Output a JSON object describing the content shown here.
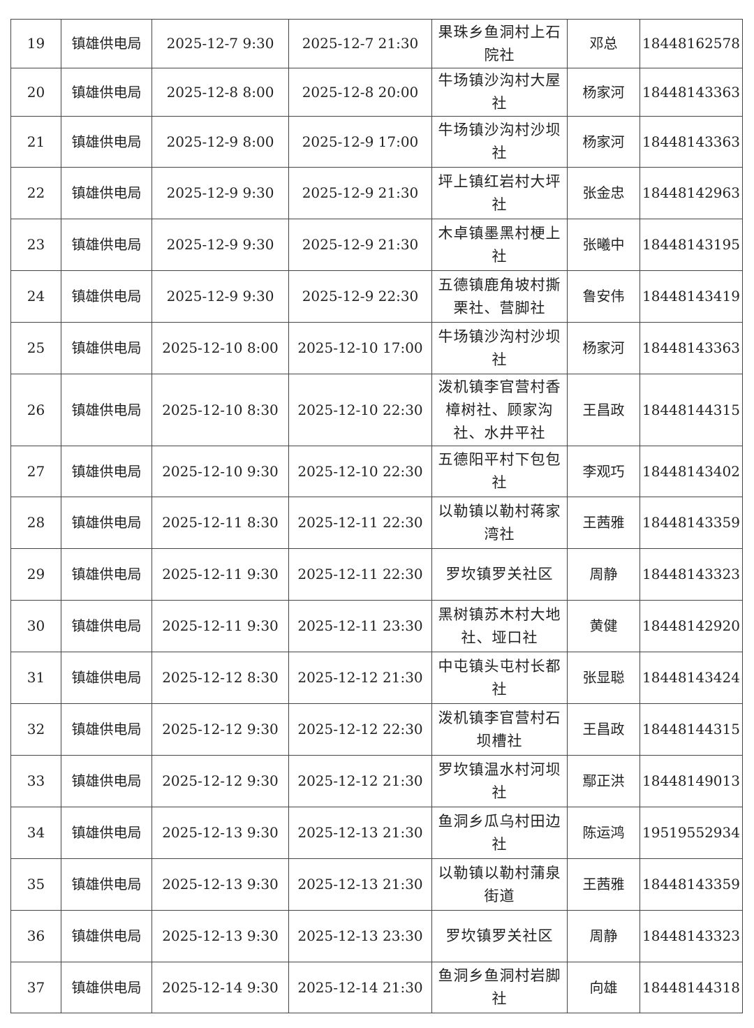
{
  "rows": [
    {
      "no": "19",
      "unit": "镇雄供电局",
      "start": "2025-12-7  9:30",
      "end": "2025-12-7  21:30",
      "location": "果珠乡鱼洞村上石院社",
      "contact": "邓总",
      "phone": "18448162578"
    },
    {
      "no": "20",
      "unit": "镇雄供电局",
      "start": "2025-12-8  8:00",
      "end": "2025-12-8  20:00",
      "location": "牛场镇沙沟村大屋社",
      "contact": "杨家河",
      "phone": "18448143363"
    },
    {
      "no": "21",
      "unit": "镇雄供电局",
      "start": "2025-12-9  8:00",
      "end": "2025-12-9  17:00",
      "location": "牛场镇沙沟村沙坝社",
      "contact": "杨家河",
      "phone": "18448143363"
    },
    {
      "no": "22",
      "unit": "镇雄供电局",
      "start": "2025-12-9  9:30",
      "end": "2025-12-9  21:30",
      "location": "坪上镇红岩村大坪社",
      "contact": "张金忠",
      "phone": "18448142963"
    },
    {
      "no": "23",
      "unit": "镇雄供电局",
      "start": "2025-12-9  9:30",
      "end": "2025-12-9  21:30",
      "location": "木卓镇墨黑村梗上社",
      "contact": "张曦中",
      "phone": "18448143195"
    },
    {
      "no": "24",
      "unit": "镇雄供电局",
      "start": "2025-12-9  9:30",
      "end": "2025-12-9  22:30",
      "location": "五德镇鹿角坡村撕栗社、营脚社",
      "contact": "鲁安伟",
      "phone": "18448143419"
    },
    {
      "no": "25",
      "unit": "镇雄供电局",
      "start": "2025-12-10  8:00",
      "end": "2025-12-10  17:00",
      "location": "牛场镇沙沟村沙坝社",
      "contact": "杨家河",
      "phone": "18448143363"
    },
    {
      "no": "26",
      "unit": "镇雄供电局",
      "start": "2025-12-10  8:30",
      "end": "2025-12-10  22:30",
      "location": "泼机镇李官营村香樟树社、顾家沟社、水井平社",
      "contact": "王昌政",
      "phone": "18448144315"
    },
    {
      "no": "27",
      "unit": "镇雄供电局",
      "start": "2025-12-10  9:30",
      "end": "2025-12-10  22:30",
      "location": "五德阳平村下包包社",
      "contact": "李观巧",
      "phone": "18448143402"
    },
    {
      "no": "28",
      "unit": "镇雄供电局",
      "start": "2025-12-11  8:30",
      "end": "2025-12-11  22:30",
      "location": "以勒镇以勒村蒋家湾社",
      "contact": "王茜雅",
      "phone": "18448143359"
    },
    {
      "no": "29",
      "unit": "镇雄供电局",
      "start": "2025-12-11  9:30",
      "end": "2025-12-11  22:30",
      "location": "罗坎镇罗关社区",
      "contact": "周静",
      "phone": "18448143323"
    },
    {
      "no": "30",
      "unit": "镇雄供电局",
      "start": "2025-12-11  9:30",
      "end": "2025-12-11  23:30",
      "location": "黑树镇苏木村大地社、垭口社",
      "contact": "黄健",
      "phone": "18448142920"
    },
    {
      "no": "31",
      "unit": "镇雄供电局",
      "start": "2025-12-12  8:30",
      "end": "2025-12-12  21:30",
      "location": "中屯镇头屯村长都社",
      "contact": "张显聪",
      "phone": "18448143424"
    },
    {
      "no": "32",
      "unit": "镇雄供电局",
      "start": "2025-12-12  9:30",
      "end": "2025-12-12  22:30",
      "location": "泼机镇李官营村石坝槽社",
      "contact": "王昌政",
      "phone": "18448144315"
    },
    {
      "no": "33",
      "unit": "镇雄供电局",
      "start": "2025-12-12  9:30",
      "end": "2025-12-12  21:30",
      "location": "罗坎镇温水村河坝社",
      "contact": "鄢正洪",
      "phone": "18448149013"
    },
    {
      "no": "34",
      "unit": "镇雄供电局",
      "start": "2025-12-13  9:30",
      "end": "2025-12-13  21:30",
      "location": "鱼洞乡瓜乌村田边社",
      "contact": "陈运鸿",
      "phone": "19519552934"
    },
    {
      "no": "35",
      "unit": "镇雄供电局",
      "start": "2025-12-13  9:30",
      "end": "2025-12-13  21:30",
      "location": "以勒镇以勒村蒲泉街道",
      "contact": "王茜雅",
      "phone": "18448143359"
    },
    {
      "no": "36",
      "unit": "镇雄供电局",
      "start": "2025-12-13  9:30",
      "end": "2025-12-13  23:30",
      "location": "罗坎镇罗关社区",
      "contact": "周静",
      "phone": "18448143323"
    },
    {
      "no": "37",
      "unit": "镇雄供电局",
      "start": "2025-12-14  9:30",
      "end": "2025-12-14  21:30",
      "location": "鱼洞乡鱼洞村岩脚社",
      "contact": "向雄",
      "phone": "18448144318"
    }
  ]
}
